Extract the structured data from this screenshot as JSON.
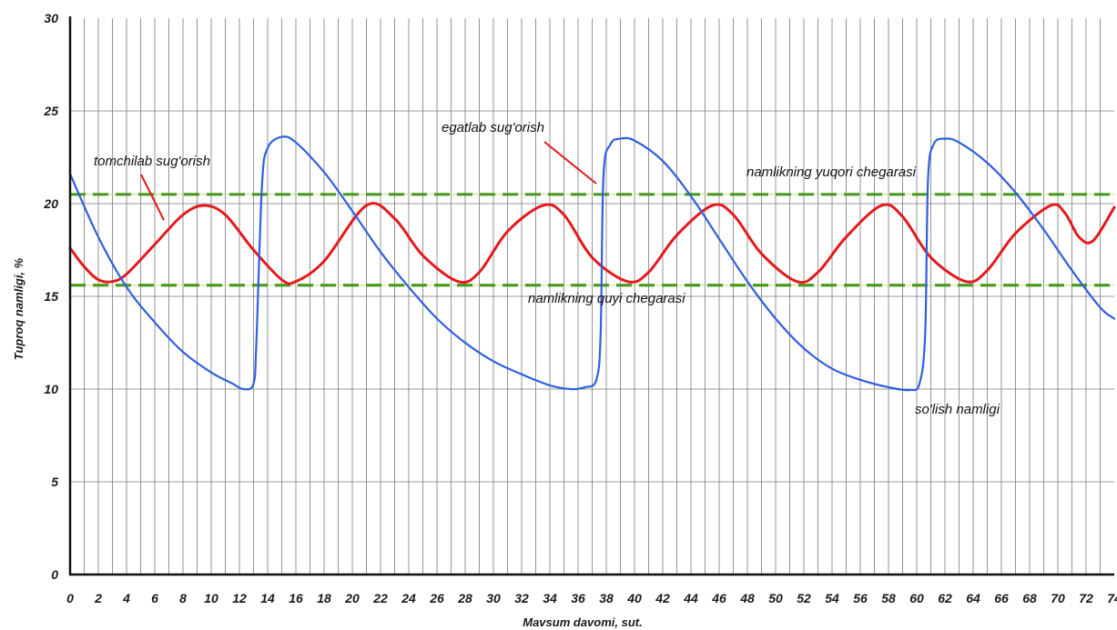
{
  "chart_data": {
    "type": "line",
    "xlabel": "Mavsum davomi, sut.",
    "ylabel": "Tuproq namligi, %",
    "xlim": [
      0,
      74
    ],
    "ylim": [
      0,
      30
    ],
    "x_ticks": [
      "0",
      "2",
      "4",
      "6",
      "8",
      "10",
      "12",
      "14",
      "16",
      "18",
      "20",
      "22",
      "24",
      "26",
      "28",
      "30",
      "32",
      "34",
      "36",
      "38",
      "40",
      "42",
      "44",
      "46",
      "48",
      "50",
      "52",
      "54",
      "56",
      "58",
      "60",
      "62",
      "64",
      "66",
      "68",
      "70",
      "72",
      "74"
    ],
    "y_ticks": [
      "0",
      "5",
      "10",
      "15",
      "20",
      "25",
      "30"
    ],
    "grid": true,
    "series": [
      {
        "name": "tomchilab sug'orish",
        "color": "#e41a1c",
        "x": [
          0,
          1,
          2,
          3,
          4,
          6,
          8,
          9.5,
          11,
          13,
          15,
          16,
          18,
          21,
          23,
          25,
          27.5,
          29,
          31,
          33.5,
          35,
          37,
          39.5,
          41,
          43,
          45.5,
          47,
          49,
          51.5,
          53,
          55,
          57.5,
          59,
          61,
          63.5,
          65,
          67,
          69.5,
          70.5,
          71.5,
          72.5,
          74
        ],
        "y": [
          17.6,
          16.6,
          15.9,
          15.8,
          16.2,
          17.8,
          19.4,
          19.9,
          19.4,
          17.5,
          15.9,
          15.8,
          16.9,
          19.9,
          19.2,
          17.2,
          15.8,
          16.3,
          18.5,
          19.9,
          19.4,
          17.1,
          15.8,
          16.3,
          18.3,
          19.9,
          19.4,
          17.3,
          15.8,
          16.3,
          18.2,
          19.9,
          19.3,
          17.1,
          15.8,
          16.4,
          18.4,
          19.9,
          19.5,
          18.2,
          18.0,
          19.8
        ]
      },
      {
        "name": "egatlab sug'orish",
        "color": "#2f5fe0",
        "x": [
          0,
          2,
          4,
          6,
          8,
          10,
          11.5,
          12.3,
          13,
          13.2,
          13.6,
          14,
          15,
          16,
          18,
          20,
          22,
          24,
          26,
          28,
          30,
          32,
          34,
          35.5,
          36.5,
          37.3,
          37.6,
          37.8,
          38.3,
          39,
          40,
          42,
          44,
          46,
          48,
          50,
          52,
          54,
          56,
          58,
          59.5,
          60.2,
          60.6,
          60.8,
          61.2,
          62,
          63,
          65,
          67,
          69,
          71,
          73,
          74
        ],
        "y": [
          21.6,
          18.2,
          15.5,
          13.6,
          12.0,
          10.9,
          10.3,
          10.0,
          10.3,
          12.5,
          21.0,
          23.0,
          23.6,
          23.3,
          21.7,
          19.6,
          17.4,
          15.5,
          13.8,
          12.5,
          11.5,
          10.8,
          10.2,
          10.0,
          10.1,
          10.5,
          13.0,
          21.5,
          23.2,
          23.5,
          23.4,
          22.3,
          20.4,
          18.1,
          15.8,
          13.8,
          12.2,
          11.1,
          10.5,
          10.1,
          9.95,
          10.3,
          13.0,
          21.3,
          23.2,
          23.5,
          23.3,
          22.2,
          20.6,
          18.6,
          16.4,
          14.4,
          13.8
        ]
      }
    ],
    "reference_lines": [
      {
        "name": "namlikning yuqori chegarasi",
        "y": 20.5,
        "color": "#4a9a1e"
      },
      {
        "name": "namlikning quyi chegarasi",
        "y": 15.6,
        "color": "#4a9a1e"
      }
    ],
    "annotations": [
      {
        "text": "tomchilab sug'orish"
      },
      {
        "text": "egatlab sug'orish"
      },
      {
        "text": "namlikning yuqori chegarasi"
      },
      {
        "text": "namlikning quyi chegarasi"
      },
      {
        "text": "so'lish namligi"
      }
    ]
  }
}
